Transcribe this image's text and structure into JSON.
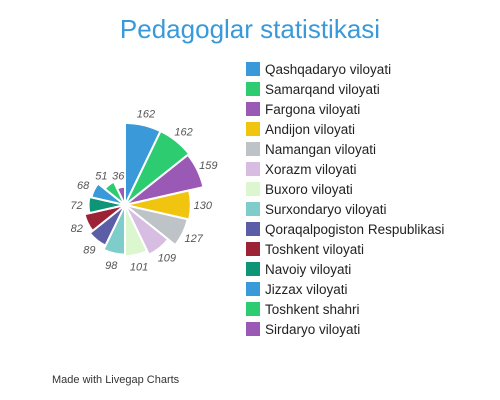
{
  "chart_data": {
    "type": "pie",
    "variant": "polar-area",
    "title": "Pedagoglar statistikasi",
    "categories": [
      "Qashqadaryo viloyati",
      "Samarqand viloyati",
      "Fargona viloyati",
      "Andijon viloyati",
      "Namangan viloyati",
      "Xorazm viloyati",
      "Buxoro viloyati",
      "Surxondaryo viloyati",
      "Qoraqalpogiston Respublikasi",
      "Toshkent viloyati",
      "Navoiy viloyati",
      "Jizzax viloyati",
      "Toshkent shahri",
      "Sirdaryo viloyati"
    ],
    "values": [
      162,
      162,
      159,
      130,
      127,
      109,
      101,
      98,
      89,
      82,
      72,
      68,
      51,
      36
    ],
    "colors": [
      "#3a9ad9",
      "#2ecc71",
      "#9b59b6",
      "#f1c40f",
      "#bdc3c7",
      "#d7bde2",
      "#dcf7cf",
      "#7fcdcb",
      "#5b5ea6",
      "#9b2335",
      "#0e9577",
      "#3a9ad9",
      "#2ecc71",
      "#9b59b6"
    ],
    "legend_position": "right",
    "show_values": true
  },
  "footer": {
    "credit": "Made with Livegap Charts"
  }
}
